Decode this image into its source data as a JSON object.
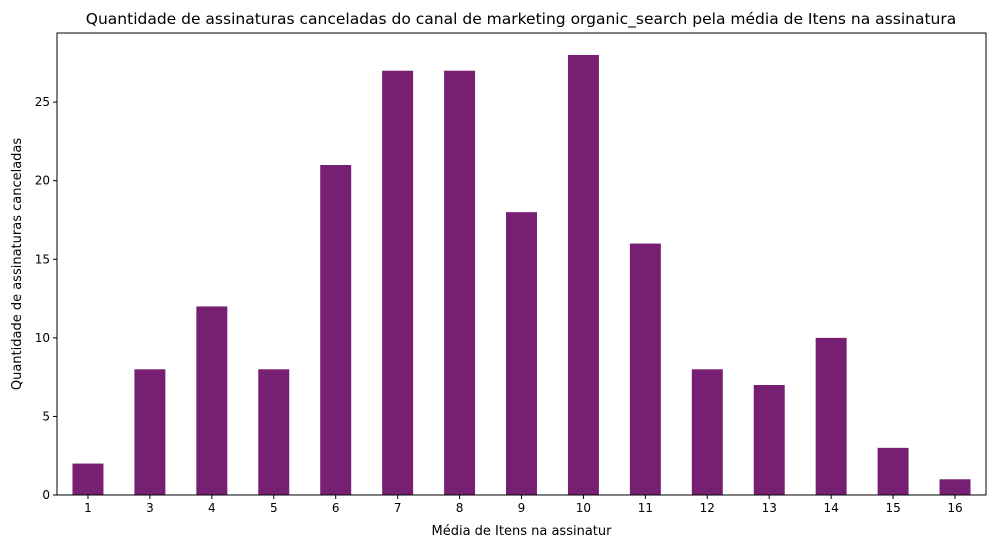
{
  "chart_data": {
    "type": "bar",
    "title": "Quantidade de assinaturas canceladas do canal de marketing organic_search pela média de Itens na assinatura",
    "xlabel": "Média de Itens na assinatur",
    "ylabel": "Quantidade de assinaturas canceladas",
    "categories": [
      "1",
      "3",
      "4",
      "5",
      "6",
      "7",
      "8",
      "9",
      "10",
      "11",
      "12",
      "13",
      "14",
      "15",
      "16"
    ],
    "values": [
      2,
      8,
      12,
      8,
      21,
      27,
      27,
      18,
      28,
      16,
      8,
      7,
      10,
      3,
      1
    ],
    "ylim": [
      0,
      29.4
    ],
    "yticks": [
      0,
      5,
      10,
      15,
      20,
      25
    ],
    "grid": false,
    "legend": "none",
    "bar_color": "#761f73"
  }
}
